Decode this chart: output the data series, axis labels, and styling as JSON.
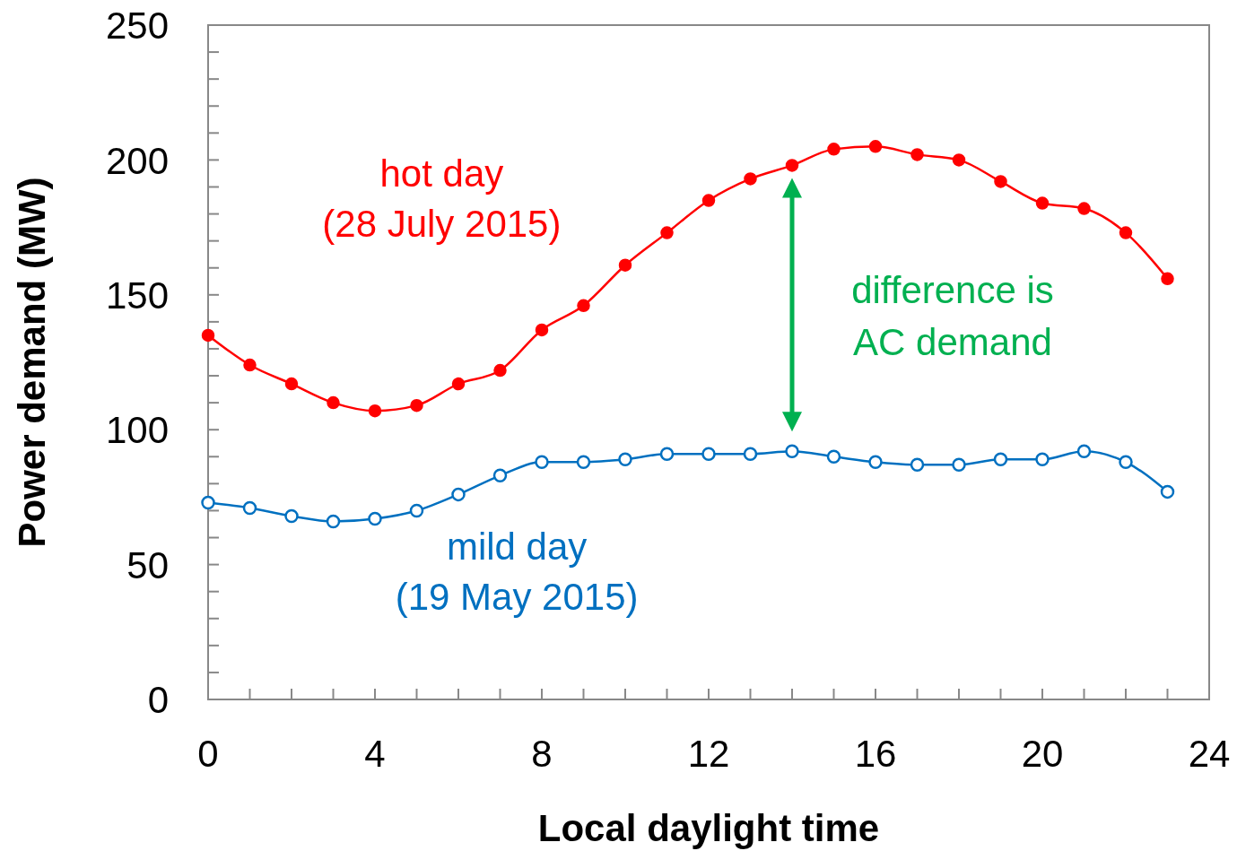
{
  "chart_data": {
    "type": "line",
    "xlabel": "Local daylight time",
    "ylabel": "Power demand (MW)",
    "x": [
      0,
      1,
      2,
      3,
      4,
      5,
      6,
      7,
      8,
      9,
      10,
      11,
      12,
      13,
      14,
      15,
      16,
      17,
      18,
      19,
      20,
      21,
      22,
      23
    ],
    "series": [
      {
        "name": "hot day\n(28 July 2015)",
        "color": "#ff0000",
        "marker": "circle",
        "values": [
          135,
          124,
          117,
          110,
          107,
          109,
          117,
          122,
          137,
          146,
          161,
          173,
          185,
          193,
          198,
          204,
          205,
          202,
          200,
          192,
          184,
          182,
          173,
          156
        ]
      },
      {
        "name": "mild day\n(19 May 2015)",
        "color": "#0070c0",
        "marker": "circle",
        "values": [
          73,
          71,
          68,
          66,
          67,
          70,
          76,
          83,
          88,
          88,
          89,
          91,
          91,
          91,
          92,
          90,
          88,
          87,
          87,
          89,
          89,
          92,
          88,
          77
        ]
      }
    ],
    "annotations": [
      "difference is\nAC demand"
    ],
    "xlim": [
      0,
      24
    ],
    "ylim": [
      0,
      250
    ],
    "xticks": [
      0,
      {
        "value": 1,
        "label": null
      },
      {
        "value": 2,
        "label": null
      },
      {
        "value": 3,
        "label": null
      },
      4,
      {
        "value": 5,
        "label": null
      },
      {
        "value": 6,
        "label": null
      },
      {
        "value": 7,
        "label": null
      },
      8,
      {
        "value": 9,
        "label": null
      },
      {
        "value": 10,
        "label": null
      },
      {
        "value": 11,
        "label": null
      },
      12,
      {
        "value": 13,
        "label": null
      },
      {
        "value": 14,
        "label": null
      },
      {
        "value": 15,
        "label": null
      },
      16,
      {
        "value": 17,
        "label": null
      },
      {
        "value": 18,
        "label": null
      },
      {
        "value": 19,
        "label": null
      },
      20,
      {
        "value": 21,
        "label": null
      },
      {
        "value": 22,
        "label": null
      },
      {
        "value": 23,
        "label": null
      },
      24
    ],
    "yticks": [
      0,
      {
        "value": 10,
        "label": null
      },
      {
        "value": 20,
        "label": null
      },
      {
        "value": 30,
        "label": null
      },
      {
        "value": 40,
        "label": null
      },
      50,
      {
        "value": 60,
        "label": null
      },
      {
        "value": 70,
        "label": null
      },
      {
        "value": 80,
        "label": null
      },
      {
        "value": 90,
        "label": null
      },
      100,
      {
        "value": 110,
        "label": null
      },
      {
        "value": 120,
        "label": null
      },
      {
        "value": 130,
        "label": null
      },
      {
        "value": 140,
        "label": null
      },
      150,
      {
        "value": 160,
        "label": null
      },
      {
        "value": 170,
        "label": null
      },
      {
        "value": 180,
        "label": null
      },
      {
        "value": 190,
        "label": null
      },
      200,
      {
        "value": 210,
        "label": null
      },
      {
        "value": 220,
        "label": null
      },
      {
        "value": 230,
        "label": null
      },
      {
        "value": 240,
        "label": null
      },
      250
    ],
    "grid": false
  }
}
